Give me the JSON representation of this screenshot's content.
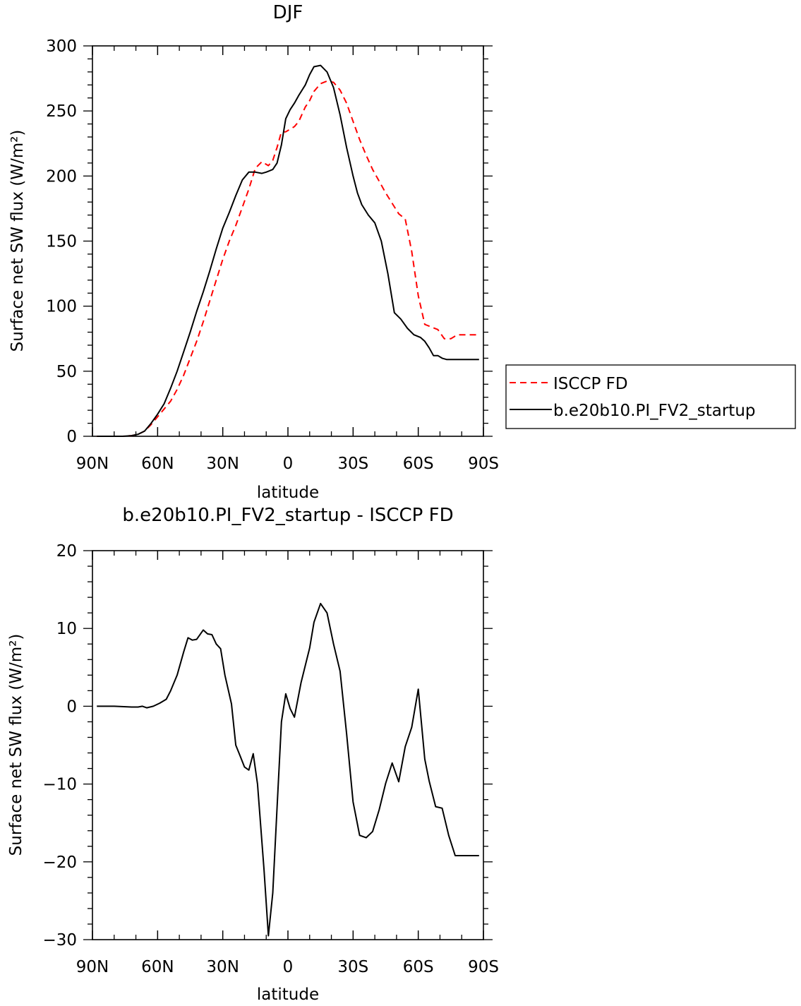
{
  "chart_data": [
    {
      "type": "line",
      "title": "DJF",
      "xlabel": "latitude",
      "ylabel": "Surface net SW flux (W/m²)",
      "xlim": [
        90,
        -90
      ],
      "ylim": [
        0,
        300
      ],
      "xticks": [
        {
          "value": 90,
          "label": "90N"
        },
        {
          "value": 60,
          "label": "60N"
        },
        {
          "value": 30,
          "label": "30N"
        },
        {
          "value": 0,
          "label": "0"
        },
        {
          "value": -30,
          "label": "30S"
        },
        {
          "value": -60,
          "label": "60S"
        },
        {
          "value": -90,
          "label": "90S"
        }
      ],
      "yticks": [
        0,
        50,
        100,
        150,
        200,
        250,
        300
      ],
      "legend_position": "right",
      "series": [
        {
          "name": "ISCCP FD",
          "color": "#ff0000",
          "dash": "dashed",
          "x": [
            88,
            84,
            80,
            76,
            72,
            69,
            66,
            63,
            60,
            57,
            54,
            51,
            48,
            45,
            42,
            39,
            36,
            33,
            30,
            27,
            24,
            21,
            18,
            15,
            12,
            9,
            7,
            5,
            3,
            1,
            -1,
            -3,
            -5,
            -8,
            -10,
            -12,
            -15,
            -18,
            -21,
            -24,
            -27,
            -30,
            -33,
            -36,
            -39,
            -42,
            -45,
            -48,
            -51,
            -54,
            -57,
            -60,
            -63,
            -66,
            -69,
            -72,
            -75,
            -78,
            -81,
            -84,
            -88
          ],
          "y": [
            0,
            0,
            0,
            0,
            0.5,
            1.5,
            4,
            9,
            15,
            21,
            27,
            36,
            47,
            60,
            73,
            88,
            104,
            120,
            136,
            150,
            162,
            176,
            190,
            206,
            211,
            208,
            212,
            222,
            234,
            234,
            236,
            238,
            242,
            253,
            258,
            265,
            271,
            273,
            272,
            266,
            256,
            242,
            228,
            216,
            205,
            196,
            187,
            179,
            171,
            167,
            142,
            108,
            86,
            84,
            82,
            75,
            75,
            78,
            78,
            78,
            78
          ]
        },
        {
          "name": "b.e20b10.PI_FV2_startup",
          "color": "#000000",
          "dash": "solid",
          "x": [
            88,
            84,
            80,
            76,
            72,
            69,
            66,
            63,
            60,
            57,
            54,
            51,
            48,
            45,
            42,
            39,
            36,
            33,
            30,
            27,
            24,
            21,
            18,
            15,
            12,
            10,
            7,
            5,
            3,
            1,
            -1,
            -3,
            -5,
            -8,
            -10,
            -12,
            -15,
            -18,
            -21,
            -24,
            -27,
            -30,
            -32,
            -34,
            -37,
            -40,
            -43,
            -46,
            -49,
            -52,
            -55,
            -58,
            -61,
            -63,
            -65,
            -67,
            -69,
            -71,
            -73,
            -75,
            -78,
            -81,
            -84,
            -88
          ],
          "y": [
            0,
            0,
            0,
            0,
            0.5,
            1.5,
            4,
            10,
            17,
            25,
            37,
            50,
            65,
            80,
            96,
            111,
            127,
            144,
            160,
            172,
            185,
            197,
            203,
            203,
            202,
            203,
            205,
            210,
            224,
            244,
            251,
            256,
            262,
            270,
            278,
            284,
            285,
            280,
            268,
            247,
            222,
            200,
            187,
            178,
            170,
            164,
            150,
            125,
            95,
            90,
            83,
            78,
            76,
            73,
            68,
            62,
            62,
            60,
            59,
            59,
            59,
            59,
            59,
            59
          ]
        }
      ]
    },
    {
      "type": "line",
      "title": "b.e20b10.PI_FV2_startup - ISCCP FD",
      "xlabel": "latitude",
      "ylabel": "Surface net SW flux (W/m²)",
      "xlim": [
        90,
        -90
      ],
      "ylim": [
        -30,
        20
      ],
      "xticks": [
        {
          "value": 90,
          "label": "90N"
        },
        {
          "value": 60,
          "label": "60N"
        },
        {
          "value": 30,
          "label": "30N"
        },
        {
          "value": 0,
          "label": "0"
        },
        {
          "value": -30,
          "label": "30S"
        },
        {
          "value": -60,
          "label": "60S"
        },
        {
          "value": -90,
          "label": "90S"
        }
      ],
      "yticks": [
        -30,
        -20,
        -10,
        0,
        10,
        20
      ],
      "series": [
        {
          "color": "#000000",
          "dash": "solid",
          "x": [
            88,
            80,
            72,
            69,
            67,
            65,
            62,
            59,
            56,
            54,
            51,
            48,
            46,
            44,
            42,
            39,
            37,
            35,
            33,
            31,
            29,
            26,
            24,
            22,
            20,
            18,
            16,
            14,
            11,
            9,
            7,
            5,
            3,
            1,
            -1,
            -3,
            -6,
            -10,
            -12,
            -15,
            -18,
            -21,
            -24,
            -27,
            -30,
            -33,
            -36,
            -39,
            -42,
            -45,
            -48,
            -51,
            -54,
            -57,
            -60,
            -63,
            -65,
            -68,
            -71,
            -74,
            -77,
            -80,
            -82,
            -85,
            -88
          ],
          "y": [
            0,
            0,
            -0.1,
            -0.1,
            0,
            -0.2,
            0,
            0.4,
            0.9,
            2,
            4,
            7,
            8.8,
            8.5,
            8.6,
            9.8,
            9.3,
            9.2,
            8,
            7.4,
            4,
            0.3,
            -5,
            -6.4,
            -7.8,
            -8.2,
            -6.1,
            -10,
            -21,
            -29.5,
            -24,
            -13,
            -2,
            1.6,
            -0.3,
            -1.4,
            3,
            7.5,
            10.8,
            13.2,
            12,
            8,
            4.5,
            -3.5,
            -12.3,
            -16.6,
            -16.9,
            -16.1,
            -13.3,
            -9.9,
            -7.3,
            -9.7,
            -5.2,
            -2.7,
            2.2,
            -6.8,
            -9.6,
            -12.9,
            -13.1,
            -16.6,
            -19.2,
            -19.2,
            -19.2,
            -19.2,
            -19.2
          ]
        }
      ]
    }
  ],
  "legend": {
    "entries": [
      "ISCCP FD",
      "b.e20b10.PI_FV2_startup"
    ]
  }
}
